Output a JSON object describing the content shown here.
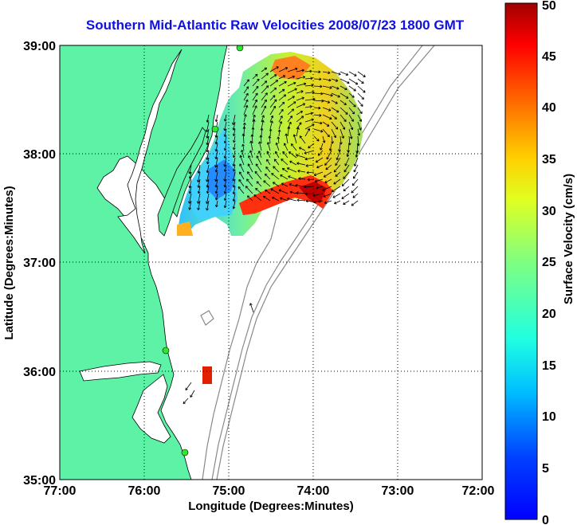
{
  "title": "Southern Mid-Atlantic Raw Velocities 2008/07/23 1800 GMT",
  "xlabel": "Longitude (Degrees:Minutes)",
  "ylabel": "Latitude (Degrees:Minutes)",
  "x_ticks": [
    "77:00",
    "76:00",
    "75:00",
    "74:00",
    "73:00",
    "72:00"
  ],
  "y_ticks": [
    "39:00",
    "38:00",
    "37:00",
    "36:00",
    "35:00"
  ],
  "colorbar": {
    "label": "Surface Velocity (cm/s)",
    "ticks": [
      "0",
      "5",
      "10",
      "15",
      "20",
      "25",
      "30",
      "35",
      "40",
      "45",
      "50"
    ],
    "range": [
      0,
      50
    ]
  },
  "colors": {
    "land": "#5ef2a6",
    "title": "#1010e0",
    "station": "#2ee82e"
  },
  "extent": {
    "lon": [
      -77,
      -72
    ],
    "lat": [
      35,
      39
    ]
  }
}
